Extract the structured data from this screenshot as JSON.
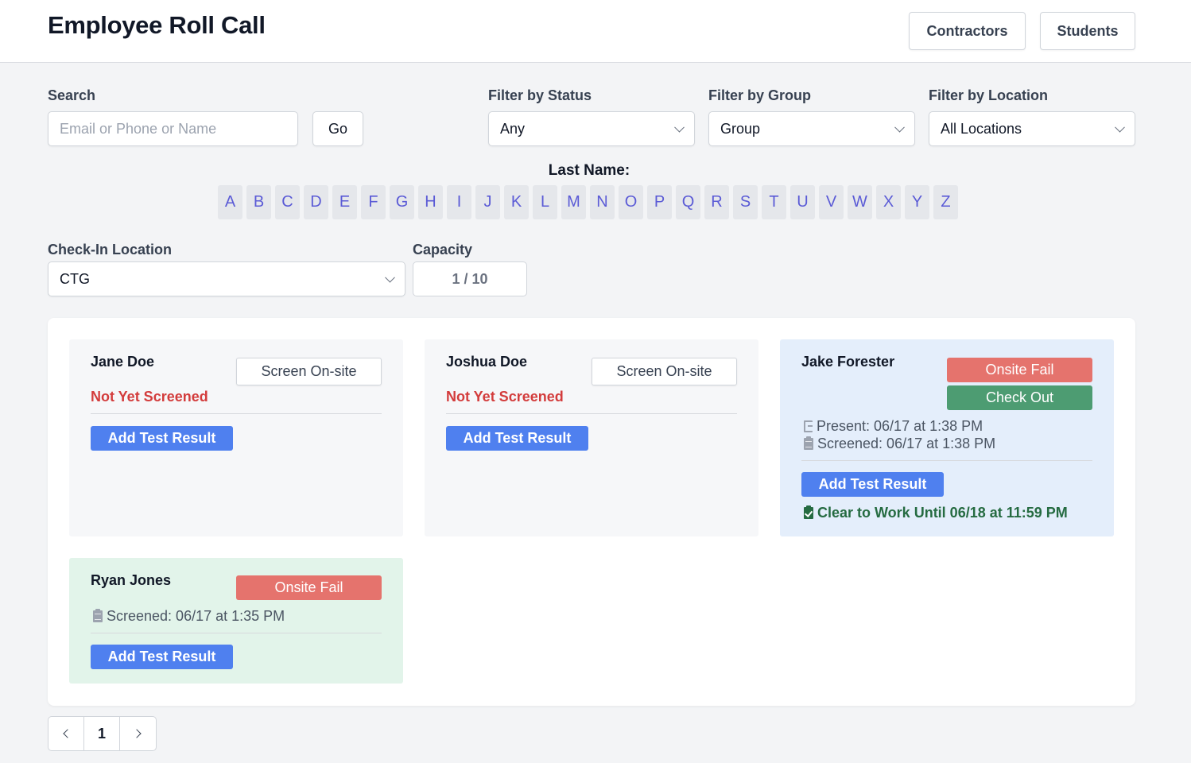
{
  "header": {
    "title": "Employee Roll Call",
    "buttons": [
      "Contractors",
      "Students"
    ]
  },
  "filters": {
    "search_label": "Search",
    "search_placeholder": "Email or Phone or Name",
    "go_label": "Go",
    "status_label": "Filter by Status",
    "status_value": "Any",
    "group_label": "Filter by Group",
    "group_value": "Group",
    "location_label": "Filter by Location",
    "location_value": "All Locations"
  },
  "lastname": {
    "label": "Last Name:",
    "letters": [
      "A",
      "B",
      "C",
      "D",
      "E",
      "F",
      "G",
      "H",
      "I",
      "J",
      "K",
      "L",
      "M",
      "N",
      "O",
      "P",
      "Q",
      "R",
      "S",
      "T",
      "U",
      "V",
      "W",
      "X",
      "Y",
      "Z"
    ]
  },
  "checkin": {
    "location_label": "Check-In Location",
    "location_value": "CTG",
    "capacity_label": "Capacity",
    "capacity_value": "1 / 10"
  },
  "cards": [
    {
      "name": "Jane Doe",
      "action": "Screen On-site",
      "status": "Not Yet Screened",
      "add_result": "Add Test Result",
      "bg": "#f6f7f9"
    },
    {
      "name": "Joshua Doe",
      "action": "Screen On-site",
      "status": "Not Yet Screened",
      "add_result": "Add Test Result",
      "bg": "#f6f7f9"
    },
    {
      "name": "Jake Forester",
      "fail_label": "Onsite Fail",
      "checkout_label": "Check Out",
      "present": "Present: 06/17 at 1:38 PM",
      "screened": "Screened: 06/17 at 1:38 PM",
      "add_result": "Add Test Result",
      "clear": "Clear to Work Until 06/18 at 11:59 PM",
      "bg": "#e4eefb"
    },
    {
      "name": "Ryan Jones",
      "fail_label": "Onsite Fail",
      "screened": "Screened: 06/17 at 1:35 PM",
      "add_result": "Add Test Result",
      "bg": "#e2f4ea"
    }
  ],
  "pagination": {
    "current": "1"
  },
  "colors": {
    "accent_blue": "#4f80ef",
    "fail_red": "#e5736d",
    "checkout_green": "#4d9c72",
    "letter_color": "#5b5bd6",
    "status_red": "#d33c3c",
    "clear_green": "#256b41"
  }
}
